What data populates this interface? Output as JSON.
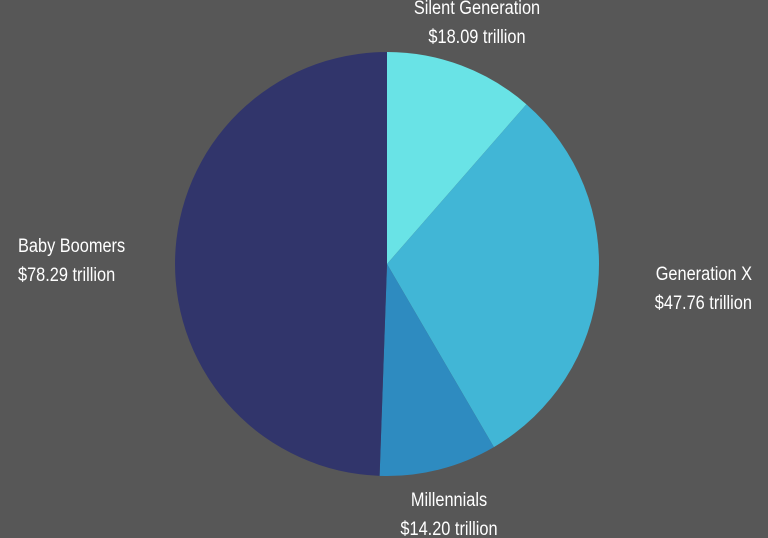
{
  "chart_data": {
    "type": "pie",
    "title": "",
    "unit": "trillion",
    "start_angle_deg": 0,
    "direction": "clockwise",
    "slices": [
      {
        "name": "Silent Generation",
        "value": 18.09,
        "value_label": "$18.09 trillion",
        "color": "#69E3E6"
      },
      {
        "name": "Generation X",
        "value": 47.76,
        "value_label": "$47.76 trillion",
        "color": "#41B6D6"
      },
      {
        "name": "Millennials",
        "value": 14.2,
        "value_label": "$14.20 trillion",
        "color": "#2E8BC0"
      },
      {
        "name": "Baby Boomers",
        "value": 78.29,
        "value_label": "$78.29 trillion",
        "color": "#31356B"
      }
    ]
  },
  "colors": {
    "background": "#575757",
    "label_text": "#FFFFFF"
  }
}
